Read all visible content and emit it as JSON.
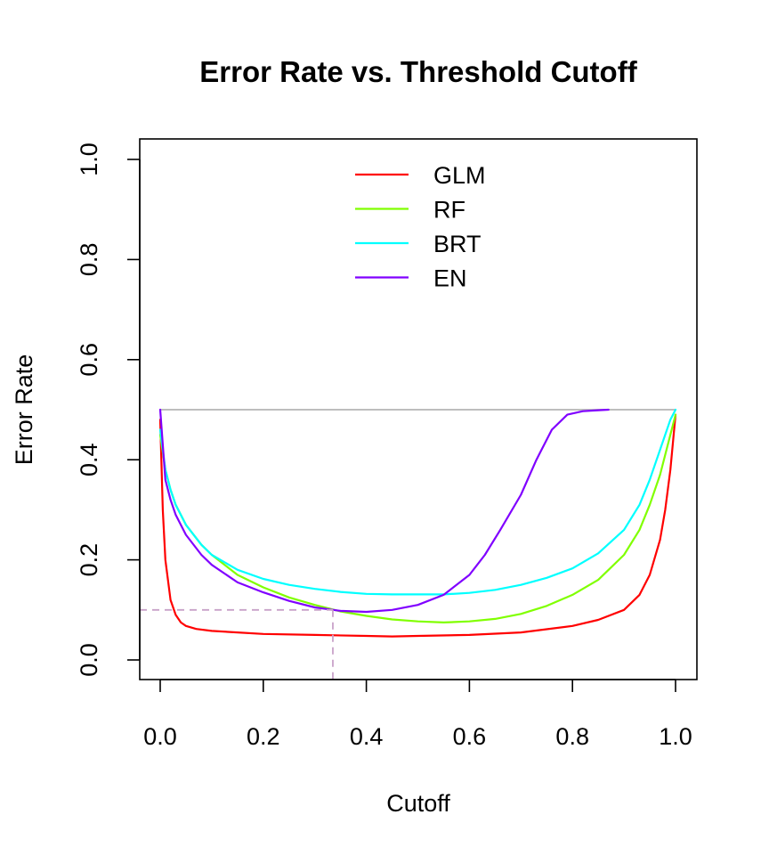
{
  "chart_data": {
    "type": "line",
    "title": "Error Rate vs. Threshold Cutoff",
    "xlabel": "Cutoff",
    "ylabel": "Error Rate",
    "xlim": [
      0.0,
      1.0
    ],
    "ylim": [
      0.0,
      1.0
    ],
    "x_ticks": [
      "0.0",
      "0.2",
      "0.4",
      "0.6",
      "0.8",
      "1.0"
    ],
    "y_ticks": [
      "0.0",
      "0.2",
      "0.4",
      "0.6",
      "0.8",
      "1.0"
    ],
    "grid": false,
    "legend_position": "top-center",
    "reference_line": {
      "y": 0.5,
      "x_range": [
        0.0,
        1.0
      ],
      "color": "#bebebe"
    },
    "optimal_cutoff": {
      "x": 0.335,
      "y": 0.1,
      "color": "#c8a2c8"
    },
    "series": [
      {
        "name": "GLM",
        "color": "#ff0000",
        "x": [
          0.0,
          0.005,
          0.01,
          0.02,
          0.03,
          0.04,
          0.05,
          0.07,
          0.1,
          0.15,
          0.2,
          0.3,
          0.4,
          0.45,
          0.5,
          0.6,
          0.7,
          0.8,
          0.85,
          0.9,
          0.93,
          0.95,
          0.97,
          0.98,
          0.99,
          1.0
        ],
        "y": [
          0.48,
          0.3,
          0.2,
          0.12,
          0.09,
          0.075,
          0.068,
          0.062,
          0.058,
          0.055,
          0.052,
          0.05,
          0.048,
          0.047,
          0.048,
          0.05,
          0.055,
          0.068,
          0.08,
          0.1,
          0.13,
          0.17,
          0.24,
          0.3,
          0.38,
          0.49
        ]
      },
      {
        "name": "RF",
        "color": "#80ff00",
        "x": [
          0.0,
          0.01,
          0.02,
          0.03,
          0.05,
          0.08,
          0.1,
          0.15,
          0.2,
          0.25,
          0.3,
          0.35,
          0.4,
          0.45,
          0.5,
          0.55,
          0.6,
          0.65,
          0.7,
          0.75,
          0.8,
          0.85,
          0.9,
          0.93,
          0.95,
          0.97,
          0.99,
          1.0
        ],
        "y": [
          0.45,
          0.38,
          0.34,
          0.31,
          0.27,
          0.23,
          0.21,
          0.17,
          0.145,
          0.125,
          0.11,
          0.097,
          0.088,
          0.081,
          0.077,
          0.075,
          0.077,
          0.082,
          0.092,
          0.108,
          0.13,
          0.16,
          0.21,
          0.26,
          0.31,
          0.37,
          0.45,
          0.49
        ]
      },
      {
        "name": "BRT",
        "color": "#00ffff",
        "x": [
          0.0,
          0.01,
          0.02,
          0.03,
          0.05,
          0.08,
          0.1,
          0.15,
          0.2,
          0.25,
          0.3,
          0.35,
          0.4,
          0.45,
          0.5,
          0.55,
          0.6,
          0.65,
          0.7,
          0.75,
          0.8,
          0.85,
          0.9,
          0.93,
          0.95,
          0.97,
          0.99,
          1.0
        ],
        "y": [
          0.46,
          0.38,
          0.34,
          0.31,
          0.27,
          0.23,
          0.21,
          0.18,
          0.162,
          0.15,
          0.142,
          0.136,
          0.132,
          0.131,
          0.131,
          0.131,
          0.134,
          0.14,
          0.15,
          0.164,
          0.183,
          0.213,
          0.26,
          0.31,
          0.36,
          0.42,
          0.48,
          0.5
        ]
      },
      {
        "name": "EN",
        "color": "#8000ff",
        "x": [
          0.0,
          0.01,
          0.02,
          0.03,
          0.05,
          0.08,
          0.1,
          0.15,
          0.2,
          0.25,
          0.3,
          0.35,
          0.4,
          0.45,
          0.5,
          0.55,
          0.6,
          0.63,
          0.66,
          0.7,
          0.73,
          0.76,
          0.79,
          0.82,
          0.85,
          0.87
        ],
        "y": [
          0.5,
          0.36,
          0.32,
          0.29,
          0.25,
          0.21,
          0.19,
          0.155,
          0.135,
          0.118,
          0.105,
          0.098,
          0.096,
          0.1,
          0.11,
          0.13,
          0.17,
          0.21,
          0.26,
          0.33,
          0.4,
          0.46,
          0.49,
          0.497,
          0.499,
          0.5
        ]
      }
    ]
  }
}
